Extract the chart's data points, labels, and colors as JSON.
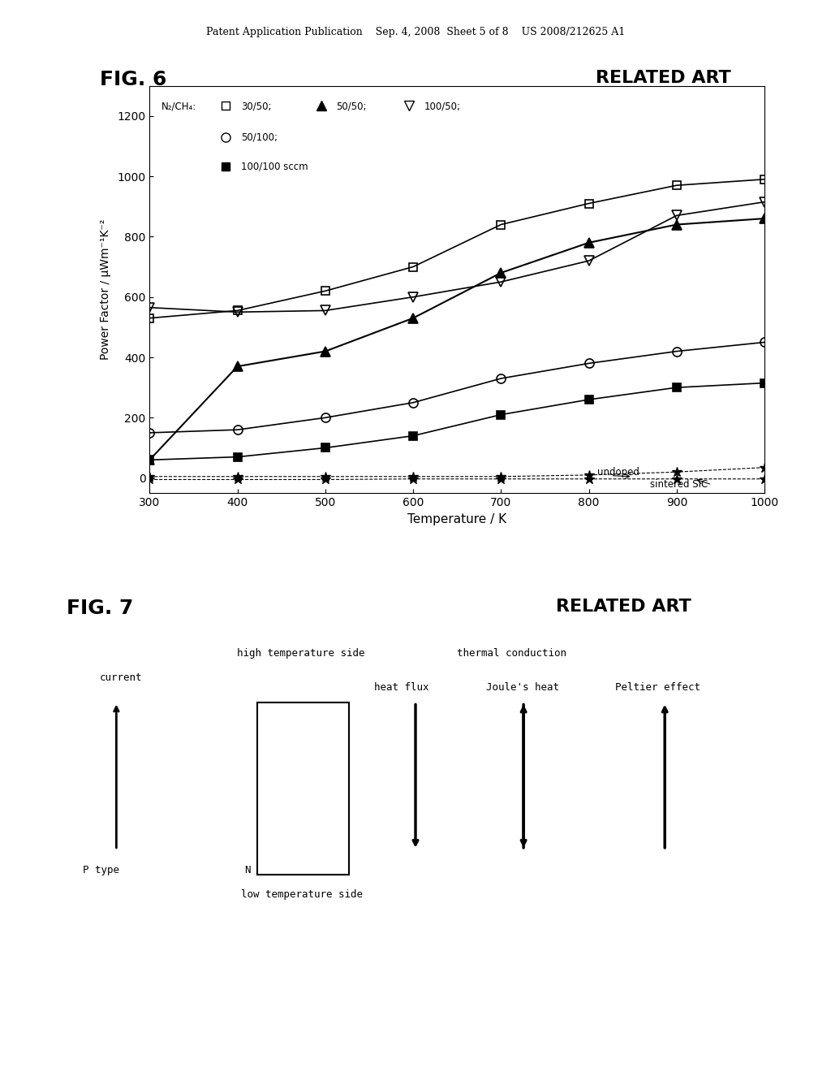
{
  "page_header": "Patent Application Publication    Sep. 4, 2008  Sheet 5 of 8    US 2008/212625 A1",
  "fig6_label": "FIG. 6",
  "fig7_label": "FIG. 7",
  "related_art": "RELATED ART",
  "fig6_xlabel": "Temperature / K",
  "fig6_ylabel": "Power Factor / μWm⁻¹K⁻²",
  "fig6_xlim": [
    300,
    1000
  ],
  "fig6_ylim": [
    -50,
    1300
  ],
  "fig6_xticks": [
    300,
    400,
    500,
    600,
    700,
    800,
    900,
    1000
  ],
  "fig6_yticks": [
    0,
    200,
    400,
    600,
    800,
    1000,
    1200
  ],
  "legend_title": "N₂/CH₄:",
  "series": [
    {
      "label": "30/50",
      "marker": "s",
      "fillstyle": "none",
      "x": [
        300,
        400,
        500,
        600,
        700,
        800,
        900,
        1000
      ],
      "y": [
        530,
        555,
        620,
        700,
        840,
        910,
        970,
        990
      ]
    },
    {
      "label": "50/50",
      "marker": "^",
      "fillstyle": "full",
      "x": [
        300,
        400,
        500,
        600,
        700,
        800,
        900,
        1000
      ],
      "y": [
        60,
        370,
        420,
        530,
        680,
        780,
        840,
        860
      ]
    },
    {
      "label": "100/50",
      "marker": "v",
      "fillstyle": "none",
      "x": [
        300,
        400,
        500,
        600,
        700,
        800,
        900,
        1000
      ],
      "y": [
        565,
        550,
        555,
        600,
        650,
        720,
        870,
        915
      ]
    },
    {
      "label": "50/100",
      "marker": "o",
      "fillstyle": "none",
      "x": [
        300,
        400,
        500,
        600,
        700,
        800,
        900,
        1000
      ],
      "y": [
        150,
        160,
        200,
        250,
        330,
        380,
        420,
        450
      ]
    },
    {
      "label": "100/100 sccm",
      "marker": "s",
      "fillstyle": "full",
      "x": [
        300,
        400,
        500,
        600,
        700,
        800,
        900,
        1000
      ],
      "y": [
        60,
        70,
        100,
        140,
        210,
        260,
        300,
        315
      ]
    },
    {
      "label": "undoped",
      "marker": "*",
      "fillstyle": "full",
      "x": [
        300,
        400,
        500,
        600,
        700,
        800,
        900,
        1000
      ],
      "y": [
        5,
        5,
        5,
        5,
        5,
        10,
        20,
        35
      ]
    },
    {
      "label": "sintered SiC",
      "marker": "*",
      "fillstyle": "full",
      "x": [
        300,
        400,
        500,
        600,
        700,
        800,
        900,
        1000
      ],
      "y": [
        -5,
        -5,
        -5,
        -3,
        -3,
        -3,
        -3,
        -3
      ]
    }
  ],
  "background_color": "#ffffff",
  "text_color": "#000000",
  "line_color": "#000000"
}
